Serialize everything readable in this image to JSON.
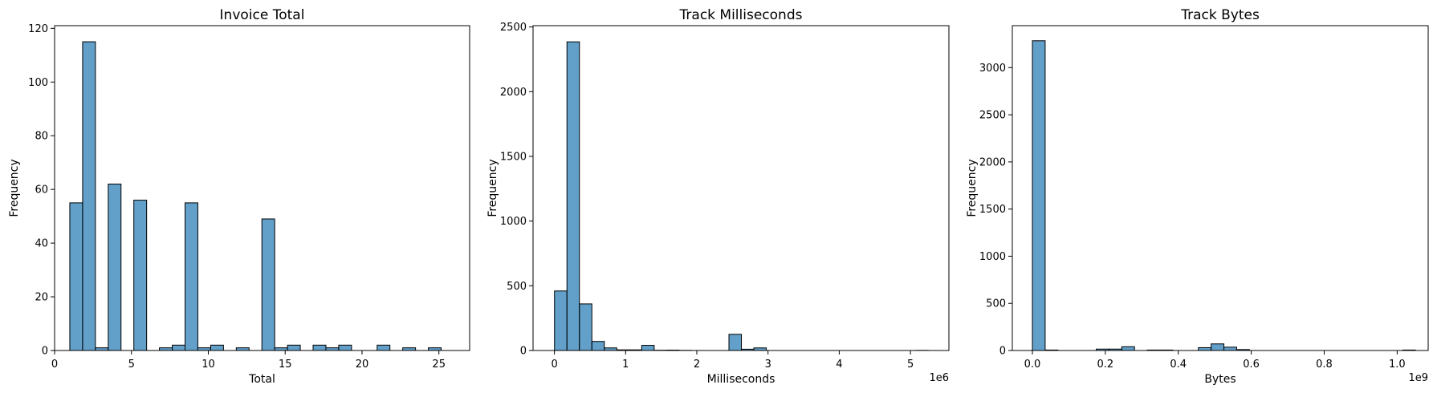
{
  "chart_data": [
    {
      "type": "bar",
      "title": "Invoice Total",
      "xlabel": "Total",
      "ylabel": "Frequency",
      "xlim": [
        0,
        27
      ],
      "ylim": [
        0,
        121
      ],
      "xticks": [
        0,
        5,
        10,
        15,
        20,
        25
      ],
      "xtick_labels": [
        "0",
        "5",
        "10",
        "15",
        "20",
        "25"
      ],
      "yticks": [
        0,
        20,
        40,
        60,
        80,
        100,
        120
      ],
      "ytick_labels": [
        "0",
        "20",
        "40",
        "60",
        "80",
        "100",
        "120"
      ],
      "x_offset_label": "",
      "bins": {
        "start": 0.99,
        "width": 0.833
      },
      "values": [
        55,
        115,
        1,
        62,
        0,
        56,
        0,
        1,
        2,
        55,
        1,
        2,
        0,
        1,
        0,
        49,
        1,
        2,
        0,
        2,
        1,
        2,
        0,
        0,
        2,
        0,
        1,
        0,
        1,
        0
      ],
      "grid": false
    },
    {
      "type": "bar",
      "title": "Track Milliseconds",
      "xlabel": "Milliseconds",
      "ylabel": "Frequency",
      "xlim": [
        -300000,
        5540000
      ],
      "ylim": [
        0,
        2510
      ],
      "xticks": [
        0,
        1000000,
        2000000,
        3000000,
        4000000,
        5000000
      ],
      "xtick_labels": [
        "0",
        "1",
        "2",
        "3",
        "4",
        "5"
      ],
      "yticks": [
        0,
        500,
        1000,
        1500,
        2000,
        2500
      ],
      "ytick_labels": [
        "0",
        "500",
        "1000",
        "1500",
        "2000",
        "2500"
      ],
      "x_offset_label": "1e6",
      "bins": {
        "start": 1071,
        "width": 175000
      },
      "values": [
        460,
        2385,
        360,
        70,
        20,
        5,
        5,
        40,
        2,
        3,
        1,
        0,
        0,
        0,
        125,
        10,
        20,
        0,
        0,
        0,
        0,
        0,
        0,
        0,
        0,
        0,
        0,
        0,
        0,
        1
      ],
      "grid": false
    },
    {
      "type": "bar",
      "title": "Track Bytes",
      "xlabel": "Bytes",
      "ylabel": "Frequency",
      "xlim": [
        -55000000,
        1085000000
      ],
      "ylim": [
        0,
        3445
      ],
      "xticks": [
        0,
        200000000,
        400000000,
        600000000,
        800000000,
        1000000000
      ],
      "xtick_labels": [
        "0.0",
        "0.2",
        "0.4",
        "0.6",
        "0.8",
        "1.0"
      ],
      "yticks": [
        0,
        500,
        1000,
        1500,
        2000,
        2500,
        3000
      ],
      "ytick_labels": [
        "0",
        "500",
        "1000",
        "1500",
        "2000",
        "2500",
        "3000"
      ],
      "x_offset_label": "1e9",
      "bins": {
        "start": 38641,
        "width": 35000000
      },
      "values": [
        3285,
        5,
        0,
        0,
        0,
        15,
        15,
        40,
        0,
        5,
        5,
        0,
        0,
        30,
        70,
        35,
        10,
        0,
        0,
        0,
        0,
        0,
        0,
        0,
        0,
        0,
        0,
        0,
        0,
        5
      ],
      "grid": false
    }
  ]
}
